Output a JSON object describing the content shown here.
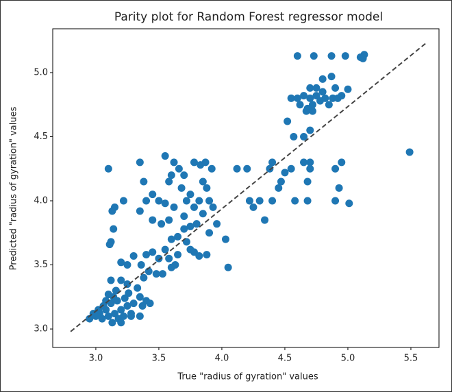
{
  "chart_data": {
    "type": "scatter",
    "title": "Parity plot for Random Forest regressor model",
    "xlabel": "True \"radius of gyration\" values",
    "ylabel": "Predicted \"radius of gyration\" values",
    "color": "#1f77b4",
    "x": [
      2.95,
      3.0,
      3.03,
      3.05,
      3.08,
      3.1,
      3.12,
      3.15,
      3.18,
      3.2,
      3.22,
      3.25,
      3.1,
      3.14,
      3.06,
      3.17,
      3.23,
      3.28,
      3.3,
      3.02,
      3.13,
      3.2,
      3.08,
      3.16,
      3.26,
      3.12,
      3.2,
      3.25,
      3.28,
      2.98,
      3.33,
      3.35,
      3.37,
      3.4,
      3.43,
      3.35,
      3.38,
      3.42,
      3.36,
      3.4,
      3.45,
      3.5,
      3.48,
      3.53,
      3.55,
      3.58,
      3.6,
      3.63,
      3.65,
      3.6,
      3.72,
      3.7,
      3.75,
      3.78,
      3.82,
      3.88,
      3.2,
      3.25,
      3.3,
      3.12,
      3.11,
      3.14,
      3.1,
      3.15,
      3.13,
      3.22,
      3.35,
      3.4,
      3.45,
      3.5,
      3.55,
      3.58,
      3.6,
      3.55,
      3.62,
      3.66,
      3.7,
      3.68,
      3.72,
      3.75,
      3.78,
      3.82,
      3.85,
      3.88,
      3.9,
      3.93,
      3.96,
      3.78,
      3.83,
      3.87,
      3.92,
      3.35,
      3.38,
      3.45,
      3.52,
      3.58,
      3.65,
      3.7,
      3.8,
      3.9,
      3.75,
      3.62,
      3.85,
      4.03,
      4.05,
      4.12,
      4.2,
      4.22,
      4.25,
      4.3,
      4.34,
      4.38,
      4.4,
      4.4,
      4.45,
      4.47,
      4.5,
      4.55,
      4.58,
      4.52,
      4.57,
      4.65,
      4.68,
      4.7,
      4.7,
      4.68,
      4.65,
      4.7,
      4.9,
      4.93,
      4.95,
      5.01,
      4.9,
      5.49,
      4.55,
      4.6,
      4.62,
      4.65,
      4.67,
      4.7,
      4.72,
      4.75,
      4.78,
      4.8,
      4.82,
      4.85,
      4.88,
      4.9,
      4.92,
      4.7,
      4.75,
      4.8,
      4.87,
      4.95,
      5.0,
      4.6,
      4.73,
      4.87,
      4.98,
      5.1,
      5.13,
      5.12,
      4.68,
      4.72
    ],
    "y": [
      3.08,
      3.1,
      3.12,
      3.08,
      3.15,
      3.1,
      3.2,
      3.12,
      3.08,
      3.15,
      3.1,
      3.18,
      3.27,
      3.25,
      3.18,
      3.22,
      3.24,
      3.12,
      3.2,
      3.15,
      3.05,
      3.05,
      3.22,
      3.3,
      3.28,
      3.38,
      3.38,
      3.35,
      3.1,
      3.12,
      3.32,
      3.25,
      3.18,
      3.22,
      3.2,
      3.1,
      3.4,
      3.45,
      3.5,
      3.58,
      3.6,
      3.55,
      3.43,
      3.43,
      3.62,
      3.55,
      3.48,
      3.5,
      3.58,
      3.7,
      3.68,
      3.78,
      3.62,
      3.6,
      3.57,
      3.58,
      3.52,
      3.5,
      3.57,
      3.68,
      3.66,
      3.78,
      4.25,
      3.95,
      3.92,
      4.0,
      3.92,
      4.0,
      4.05,
      4.0,
      3.98,
      4.15,
      4.2,
      4.35,
      4.3,
      4.25,
      4.2,
      4.1,
      4.0,
      4.05,
      3.95,
      4.0,
      3.9,
      4.1,
      4.0,
      3.95,
      3.82,
      4.3,
      4.28,
      4.3,
      4.25,
      4.3,
      4.15,
      3.85,
      3.82,
      3.85,
      3.72,
      3.88,
      3.82,
      3.75,
      3.8,
      3.95,
      4.15,
      3.7,
      3.48,
      4.25,
      4.25,
      4.0,
      3.95,
      4.0,
      3.85,
      4.25,
      4.3,
      4.0,
      4.1,
      4.15,
      4.22,
      4.25,
      4.0,
      4.62,
      4.5,
      4.3,
      4.15,
      4.3,
      4.25,
      4.0,
      4.5,
      4.55,
      4.0,
      4.1,
      4.3,
      3.98,
      4.25,
      4.38,
      4.8,
      4.8,
      4.75,
      4.82,
      4.7,
      4.8,
      4.75,
      4.82,
      4.78,
      4.85,
      4.8,
      4.75,
      4.8,
      4.88,
      4.8,
      4.88,
      4.88,
      4.95,
      4.97,
      4.82,
      4.87,
      5.13,
      5.13,
      5.13,
      5.13,
      5.12,
      5.14,
      5.11,
      4.72,
      4.7
    ],
    "reference_line": {
      "x": [
        2.8,
        5.62
      ],
      "y": [
        2.98,
        5.23
      ],
      "color": "#444444"
    },
    "xlim": [
      2.658,
      5.723
    ],
    "ylim": [
      2.856,
      5.342
    ],
    "xticks": [
      {
        "value": 3,
        "label": "3.0"
      },
      3.5,
      {
        "value": 4,
        "label": "4.0"
      },
      4.5,
      {
        "value": 5,
        "label": "5.0"
      },
      5.5
    ],
    "yticks": [
      {
        "value": 3,
        "label": "3.0"
      },
      3.5,
      {
        "value": 4,
        "label": "4.0"
      },
      4.5,
      {
        "value": 5,
        "label": "5.0"
      }
    ]
  }
}
